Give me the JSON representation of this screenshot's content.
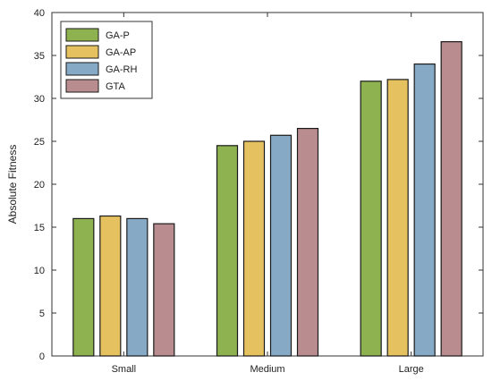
{
  "chart_data": {
    "type": "bar",
    "title": "",
    "xlabel": "",
    "ylabel": "Absolute Fitness",
    "ylim": [
      0,
      40
    ],
    "yticks": [
      0,
      5,
      10,
      15,
      20,
      25,
      30,
      35,
      40
    ],
    "categories": [
      "Small",
      "Medium",
      "Large"
    ],
    "series": [
      {
        "name": "GA-P",
        "color": "#8db24f",
        "values": [
          16.0,
          24.5,
          32.0
        ]
      },
      {
        "name": "GA-AP",
        "color": "#e6c15f",
        "values": [
          16.3,
          25.0,
          32.2
        ]
      },
      {
        "name": "GA-RH",
        "color": "#86aac6",
        "values": [
          16.0,
          25.7,
          34.0
        ]
      },
      {
        "name": "GTA",
        "color": "#b98d8f",
        "values": [
          15.4,
          26.5,
          36.6
        ]
      }
    ],
    "legend_position": "top-left",
    "grid": false
  }
}
